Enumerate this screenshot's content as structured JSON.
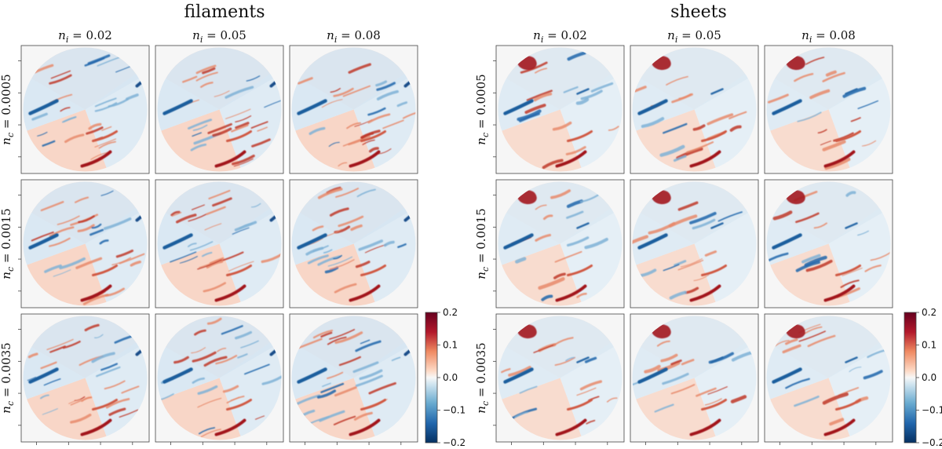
{
  "chart_data": {
    "type": "heatmap",
    "description_title_left": "filaments",
    "description_title_right": "sheets",
    "panels": [
      {
        "title": "filaments",
        "columns": [
          "n_i = 0.02",
          "n_i = 0.05",
          "n_i = 0.08"
        ],
        "column_values": [
          0.02,
          0.05,
          0.08
        ],
        "rows": [
          "n_c = 0.0005",
          "n_c = 0.0015",
          "n_c = 0.0035"
        ],
        "row_values": [
          0.0005,
          0.0015,
          0.0035
        ],
        "colorbar": {
          "ticks": [
            "0.2",
            "0.1",
            "0.0",
            "−0.1",
            "−0.2"
          ],
          "tick_values": [
            0.2,
            0.1,
            0.0,
            -0.1,
            -0.2
          ],
          "range": [
            -0.2,
            0.2
          ],
          "colormap": "RdBu_r"
        }
      },
      {
        "title": "sheets",
        "columns": [
          "n_i = 0.02",
          "n_i = 0.05",
          "n_i = 0.08"
        ],
        "column_values": [
          0.02,
          0.05,
          0.08
        ],
        "rows": [
          "n_c = 0.0005",
          "n_c = 0.0015",
          "n_c = 0.0035"
        ],
        "row_values": [
          0.0005,
          0.0015,
          0.0035
        ],
        "colorbar": {
          "ticks": [
            "0.2",
            "0.1",
            "0.0",
            "−0.1",
            "−0.2"
          ],
          "tick_values": [
            0.2,
            0.1,
            0.0,
            -0.1,
            -0.2
          ],
          "range": [
            -0.2,
            0.2
          ],
          "colormap": "RdBu_r"
        }
      }
    ]
  },
  "colors": {
    "red_dark": "#67001f",
    "red": "#d6604d",
    "red_light": "#f4a582",
    "neutral": "#f7f7f7",
    "blue_light": "#92c5de",
    "blue": "#4393c3",
    "blue_dark": "#053061"
  }
}
